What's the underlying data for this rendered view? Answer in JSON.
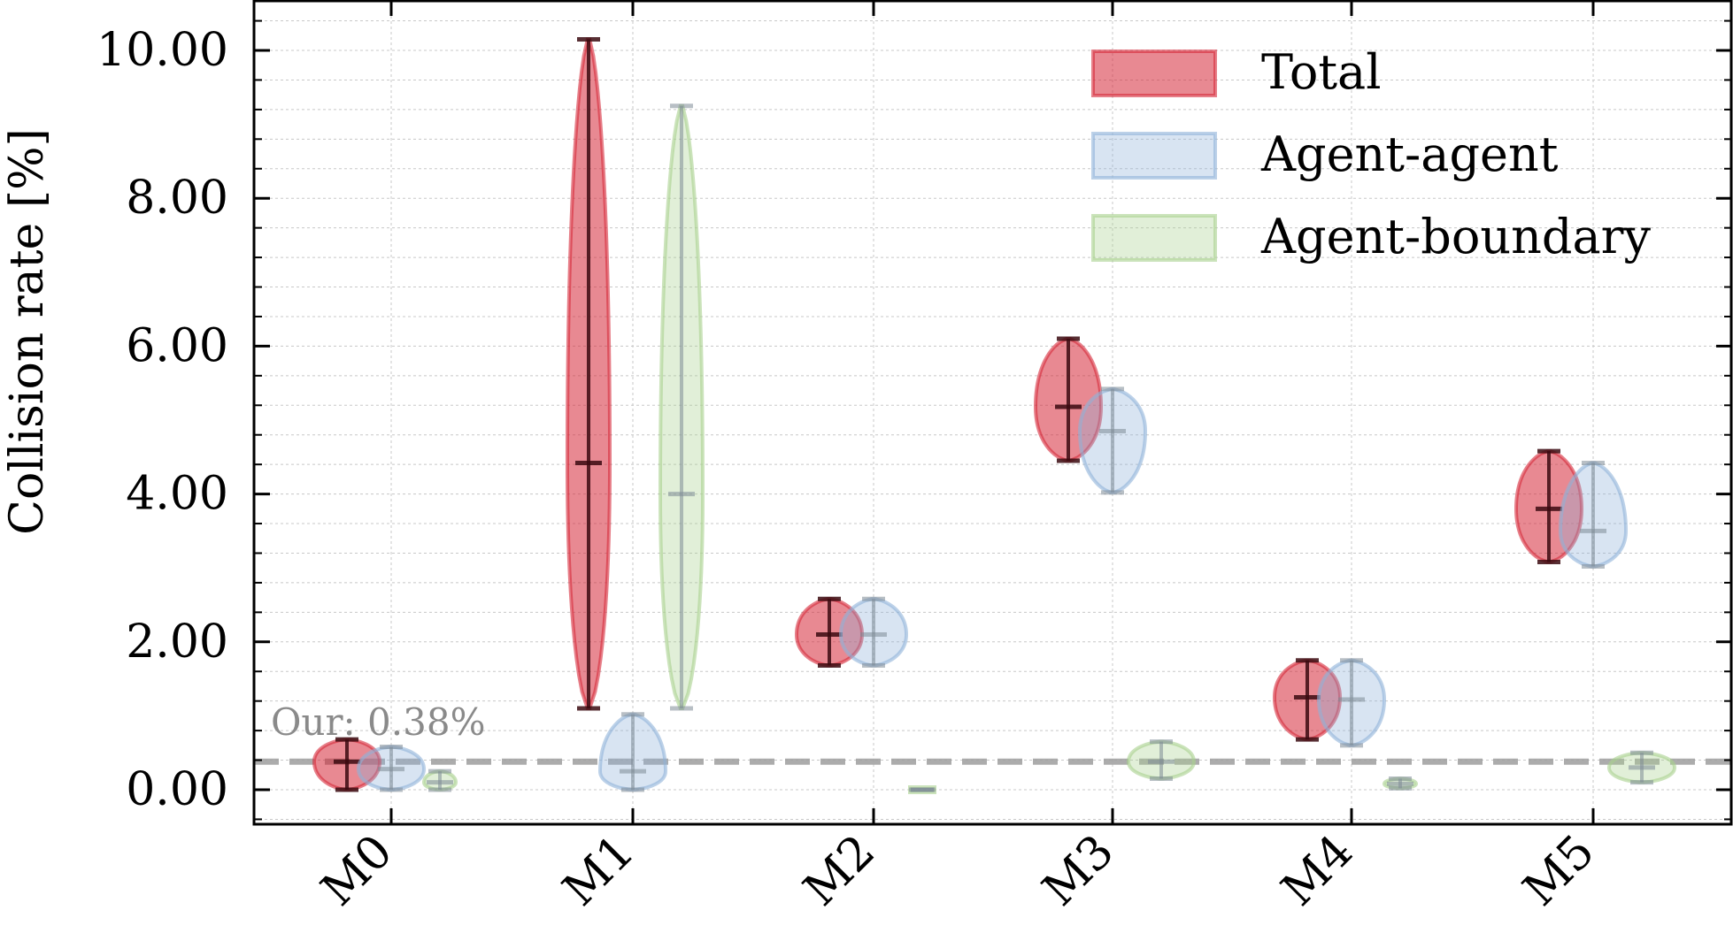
{
  "chart_data": {
    "type": "violin",
    "ylabel": "Collision rate [%]",
    "xlabel": "",
    "ylim": [
      -0.5,
      10.65
    ],
    "yticks": [
      0,
      2,
      4,
      6,
      8,
      10
    ],
    "ytick_labels": [
      "0.00",
      "2.00",
      "4.00",
      "6.00",
      "8.00",
      "10.00"
    ],
    "categories": [
      "M0",
      "M1",
      "M2",
      "M3",
      "M4",
      "M5"
    ],
    "grid": true,
    "legend_position": "top-right",
    "series": [
      {
        "name": "Total",
        "color": "#d62839",
        "violins": [
          {
            "min": 0.0,
            "median": 0.38,
            "max": 0.68
          },
          {
            "min": 1.1,
            "median": 4.42,
            "max": 10.15
          },
          {
            "min": 1.68,
            "median": 2.1,
            "max": 2.58
          },
          {
            "min": 4.45,
            "median": 5.18,
            "max": 6.1
          },
          {
            "min": 0.68,
            "median": 1.25,
            "max": 1.75
          },
          {
            "min": 3.08,
            "median": 3.8,
            "max": 4.58
          }
        ]
      },
      {
        "name": "Agent-agent",
        "color": "#8fb3d9",
        "violins": [
          {
            "min": 0.0,
            "median": 0.28,
            "max": 0.58
          },
          {
            "min": 0.0,
            "median": 0.25,
            "max": 1.02
          },
          {
            "min": 1.68,
            "median": 2.1,
            "max": 2.58
          },
          {
            "min": 4.02,
            "median": 4.85,
            "max": 5.42
          },
          {
            "min": 0.6,
            "median": 1.22,
            "max": 1.75
          },
          {
            "min": 3.02,
            "median": 3.5,
            "max": 4.42
          }
        ]
      },
      {
        "name": "Agent-boundary",
        "color": "#a9d18e",
        "violins": [
          {
            "min": 0.0,
            "median": 0.1,
            "max": 0.25
          },
          {
            "min": 1.1,
            "median": 4.0,
            "max": 9.25
          },
          {
            "min": 0.0,
            "median": 0.0,
            "max": 0.0
          },
          {
            "min": 0.15,
            "median": 0.38,
            "max": 0.65
          },
          {
            "min": 0.02,
            "median": 0.08,
            "max": 0.15
          },
          {
            "min": 0.1,
            "median": 0.3,
            "max": 0.5
          }
        ]
      }
    ],
    "reference_line": {
      "value": 0.38,
      "label": "Our: 0.38%",
      "color": "#9e9e9e"
    }
  }
}
